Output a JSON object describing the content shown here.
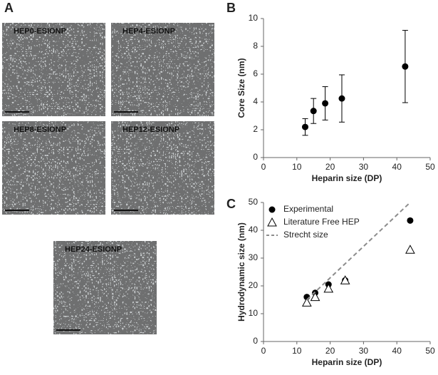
{
  "figure": {
    "panel_a": {
      "label": "A",
      "images": [
        "HEP0-ESIONP",
        "HEP4-ESIONP",
        "HEP8-ESIONP",
        "HEP12-ESIONP",
        "HEP24-ESIONP"
      ]
    }
  },
  "chart_data": [
    {
      "type": "scatter",
      "label": "B",
      "x_label": "Heparin size (DP)",
      "y_label": "Core Size (nm)",
      "x": [
        12.5,
        15,
        18.5,
        23.5,
        42.5
      ],
      "values": [
        2.2,
        3.35,
        3.9,
        4.25,
        6.55
      ],
      "errors": [
        0.6,
        0.9,
        1.2,
        1.7,
        2.6
      ],
      "color": "#000000",
      "xlim": [
        0,
        50
      ],
      "xticks": [
        0,
        10,
        20,
        30,
        40,
        50
      ],
      "ylim": [
        0,
        10
      ],
      "yticks": [
        0,
        2,
        4,
        6,
        8,
        10
      ]
    },
    {
      "type": "scatter",
      "label": "C",
      "x_label": "Heparin size (DP)",
      "y_label": "Hydrodynamic size (nm)",
      "series": [
        {
          "name": "Experimental",
          "marker": "circle",
          "color": "#000000",
          "x": [
            13,
            15.5,
            19.5,
            24.5,
            44
          ],
          "values": [
            16,
            17.5,
            20.5,
            22,
            43.5
          ]
        },
        {
          "name": "Literature Free HEP",
          "marker": "triangle",
          "color": "#000000",
          "x": [
            13,
            15.5,
            19.5,
            24.5,
            44
          ],
          "values": [
            14,
            16,
            19,
            22,
            33
          ]
        },
        {
          "name": "Strecht size",
          "marker": "dashed-line",
          "color": "#8c8c8c",
          "x": [
            13,
            44
          ],
          "values": [
            15,
            50
          ]
        }
      ],
      "legend": "upper-left",
      "xlim": [
        0,
        50
      ],
      "xticks": [
        0,
        10,
        20,
        30,
        40,
        50
      ],
      "ylim": [
        0,
        50
      ],
      "yticks": [
        0,
        10,
        20,
        30,
        40,
        50
      ]
    }
  ]
}
